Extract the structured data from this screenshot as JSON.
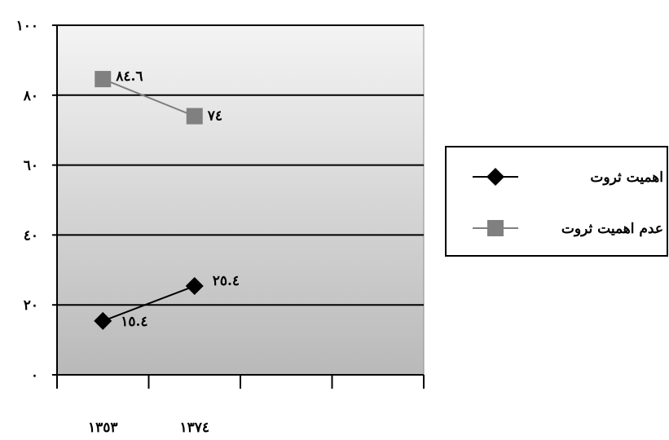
{
  "chart_data": {
    "type": "line",
    "categories": [
      "١٣٥٣",
      "١٣٧٤"
    ],
    "category_slots": 4,
    "y_tick_labels": [
      "٠",
      "٢٠",
      "٤٠",
      "٦٠",
      "٨٠",
      "١٠٠"
    ],
    "ylim": [
      0,
      100
    ],
    "y_ticks": [
      0,
      20,
      40,
      60,
      80,
      100
    ],
    "grid": true,
    "legend_position": "right",
    "series": [
      {
        "name": "اهمیت ثروت",
        "values": [
          15.4,
          25.4
        ],
        "labels": [
          "١٥.٤",
          "٢٥.٤"
        ],
        "color": "#000000",
        "marker": "diamond"
      },
      {
        "name": "عدم اهمیت ثروت",
        "values": [
          84.6,
          74
        ],
        "labels": [
          "٨٤.٦",
          "٧٤"
        ],
        "color": "#808080",
        "marker": "square"
      }
    ]
  }
}
